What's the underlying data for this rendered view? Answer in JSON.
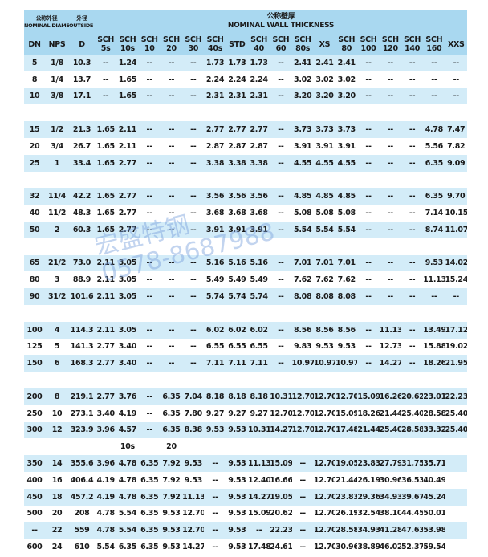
{
  "header": {
    "nominal_diameter_cn": "公称外径",
    "nominal_diameter": "NOMINAL DIAMETER",
    "outside_diameter_cn": "外径",
    "outside_diameter": "OUTSIDE DIAMETER",
    "wall_thickness_cn": "公称壁厚",
    "wall_thickness": "NOMINAL WALL THICKNESS"
  },
  "columns": [
    "DN",
    "NPS",
    "D",
    "SCH 5s",
    "SCH 10s",
    "SCH 10",
    "SCH 20",
    "SCH 30",
    "SCH 40s",
    "STD",
    "SCH 40",
    "SCH 60",
    "SCH 80s",
    "XS",
    "SCH 80",
    "SCH 100",
    "SCH 120",
    "SCH 140",
    "SCH 160",
    "XXS"
  ],
  "rows": [
    [
      "5",
      "1/8",
      "10.3",
      "--",
      "1.24",
      "--",
      "--",
      "--",
      "1.73",
      "1.73",
      "1.73",
      "--",
      "2.41",
      "2.41",
      "2.41",
      "--",
      "--",
      "--",
      "--",
      "--"
    ],
    [
      "8",
      "1/4",
      "13.7",
      "--",
      "1.65",
      "--",
      "--",
      "--",
      "2.24",
      "2.24",
      "2.24",
      "--",
      "3.02",
      "3.02",
      "3.02",
      "--",
      "--",
      "--",
      "--",
      "--"
    ],
    [
      "10",
      "3/8",
      "17.1",
      "--",
      "1.65",
      "--",
      "--",
      "--",
      "2.31",
      "2.31",
      "2.31",
      "--",
      "3.20",
      "3.20",
      "3.20",
      "--",
      "--",
      "--",
      "--",
      "--"
    ],
    [],
    [
      "15",
      "1/2",
      "21.3",
      "1.65",
      "2.11",
      "--",
      "--",
      "--",
      "2.77",
      "2.77",
      "2.77",
      "--",
      "3.73",
      "3.73",
      "3.73",
      "--",
      "--",
      "--",
      "4.78",
      "7.47"
    ],
    [
      "20",
      "3/4",
      "26.7",
      "1.65",
      "2.11",
      "--",
      "--",
      "--",
      "2.87",
      "2.87",
      "2.87",
      "--",
      "3.91",
      "3.91",
      "3.91",
      "--",
      "--",
      "--",
      "5.56",
      "7.82"
    ],
    [
      "25",
      "1",
      "33.4",
      "1.65",
      "2.77",
      "--",
      "--",
      "--",
      "3.38",
      "3.38",
      "3.38",
      "--",
      "4.55",
      "4.55",
      "4.55",
      "--",
      "--",
      "--",
      "6.35",
      "9.09"
    ],
    [],
    [
      "32",
      "11/4",
      "42.2",
      "1.65",
      "2.77",
      "--",
      "--",
      "--",
      "3.56",
      "3.56",
      "3.56",
      "--",
      "4.85",
      "4.85",
      "4.85",
      "--",
      "--",
      "--",
      "6.35",
      "9.70"
    ],
    [
      "40",
      "11/2",
      "48.3",
      "1.65",
      "2.77",
      "--",
      "--",
      "--",
      "3.68",
      "3.68",
      "3.68",
      "--",
      "5.08",
      "5.08",
      "5.08",
      "--",
      "--",
      "--",
      "7.14",
      "10.15"
    ],
    [
      "50",
      "2",
      "60.3",
      "1.65",
      "2.77",
      "--",
      "--",
      "--",
      "3.91",
      "3.91",
      "3.91",
      "--",
      "5.54",
      "5.54",
      "5.54",
      "--",
      "--",
      "--",
      "8.74",
      "11.07"
    ],
    [],
    [
      "65",
      "21/2",
      "73.0",
      "2.11",
      "3.05",
      "--",
      "--",
      "--",
      "5.16",
      "5.16",
      "5.16",
      "--",
      "7.01",
      "7.01",
      "7.01",
      "--",
      "--",
      "--",
      "9.53",
      "14.02"
    ],
    [
      "80",
      "3",
      "88.9",
      "2.11",
      "3.05",
      "--",
      "--",
      "--",
      "5.49",
      "5.49",
      "5.49",
      "--",
      "7.62",
      "7.62",
      "7.62",
      "--",
      "--",
      "--",
      "11.13",
      "15.24"
    ],
    [
      "90",
      "31/2",
      "101.6",
      "2.11",
      "3.05",
      "--",
      "--",
      "--",
      "5.74",
      "5.74",
      "5.74",
      "--",
      "8.08",
      "8.08",
      "8.08",
      "--",
      "--",
      "--",
      "--",
      "--"
    ],
    [],
    [
      "100",
      "4",
      "114.3",
      "2.11",
      "3.05",
      "--",
      "--",
      "--",
      "6.02",
      "6.02",
      "6.02",
      "--",
      "8.56",
      "8.56",
      "8.56",
      "--",
      "11.13",
      "--",
      "13.49",
      "17.12"
    ],
    [
      "125",
      "5",
      "141.3",
      "2.77",
      "3.40",
      "--",
      "--",
      "--",
      "6.55",
      "6.55",
      "6.55",
      "--",
      "9.83",
      "9.53",
      "9.53",
      "--",
      "12.73",
      "--",
      "15.88",
      "19.02"
    ],
    [
      "150",
      "6",
      "168.3",
      "2.77",
      "3.40",
      "--",
      "--",
      "--",
      "7.11",
      "7.11",
      "7.11",
      "--",
      "10.97",
      "10.97",
      "10.97",
      "--",
      "14.27",
      "--",
      "18.26",
      "21.95"
    ],
    [],
    [
      "200",
      "8",
      "219.1",
      "2.77",
      "3.76",
      "--",
      "6.35",
      "7.04",
      "8.18",
      "8.18",
      "8.18",
      "10.31",
      "12.70",
      "12.70",
      "12.70",
      "15.09",
      "16.26",
      "20.62",
      "23.01",
      "22.23"
    ],
    [
      "250",
      "10",
      "273.1",
      "3.40",
      "4.19",
      "--",
      "6.35",
      "7.80",
      "9.27",
      "9.27",
      "9.27",
      "12.70",
      "12.70",
      "12.70",
      "15.09",
      "18.26",
      "21.44",
      "25.40",
      "28.58",
      "25.40"
    ],
    [
      "300",
      "12",
      "323.9",
      "3.96",
      "4.57",
      "--",
      "6.35",
      "8.38",
      "9.53",
      "9.53",
      "10.31",
      "14.27",
      "12.70",
      "12.70",
      "17.48",
      "21.44",
      "25.40",
      "28.58",
      "33.32",
      "25.40"
    ],
    [
      null,
      null,
      null,
      null,
      "10s",
      null,
      "20",
      null,
      null,
      null,
      null,
      null,
      null,
      null,
      null,
      null,
      null,
      null,
      null,
      null
    ],
    [
      "350",
      "14",
      "355.6",
      "3.96",
      "4.78",
      "6.35",
      "7.92",
      "9.53",
      "--",
      "9.53",
      "11.13",
      "15.09",
      "--",
      "12.70",
      "19.05",
      "23.83",
      "27.79",
      "31.75",
      "35.71",
      null
    ],
    [
      "400",
      "16",
      "406.4",
      "4.19",
      "4.78",
      "6.35",
      "7.92",
      "9.53",
      "--",
      "9.53",
      "12.40",
      "16.66",
      "--",
      "12.70",
      "21.44",
      "26.19",
      "30.96",
      "36.53",
      "40.49",
      null
    ],
    [
      "450",
      "18",
      "457.2",
      "4.19",
      "4.78",
      "6.35",
      "7.92",
      "11.13",
      "--",
      "9.53",
      "14.27",
      "19.05",
      "--",
      "12.70",
      "23.83",
      "29.36",
      "34.93",
      "39.67",
      "45.24",
      null
    ],
    [
      "500",
      "20",
      "208",
      "4.78",
      "5.54",
      "6.35",
      "9.53",
      "12.70",
      "--",
      "9.53",
      "15.09",
      "20.62",
      "--",
      "12.70",
      "26.19",
      "32.54",
      "38.10",
      "44.45",
      "50.01",
      null
    ],
    [
      "--",
      "22",
      "559",
      "4.78",
      "5.54",
      "6.35",
      "9.53",
      "12.70",
      "--",
      "9.53",
      "--",
      "22.23",
      "--",
      "12.70",
      "28.58",
      "34.93",
      "41.28",
      "47.63",
      "53.98",
      null
    ],
    [
      "600",
      "24",
      "610",
      "5.54",
      "6.35",
      "6.35",
      "9.53",
      "14.27",
      "--",
      "9.53",
      "17.48",
      "24.61",
      "--",
      "12.70",
      "30.96",
      "38.89",
      "46.02",
      "52.37",
      "59.54",
      null
    ]
  ],
  "watermark": {
    "name": "宏盛特钢",
    "phone": "0578-8687988"
  }
}
